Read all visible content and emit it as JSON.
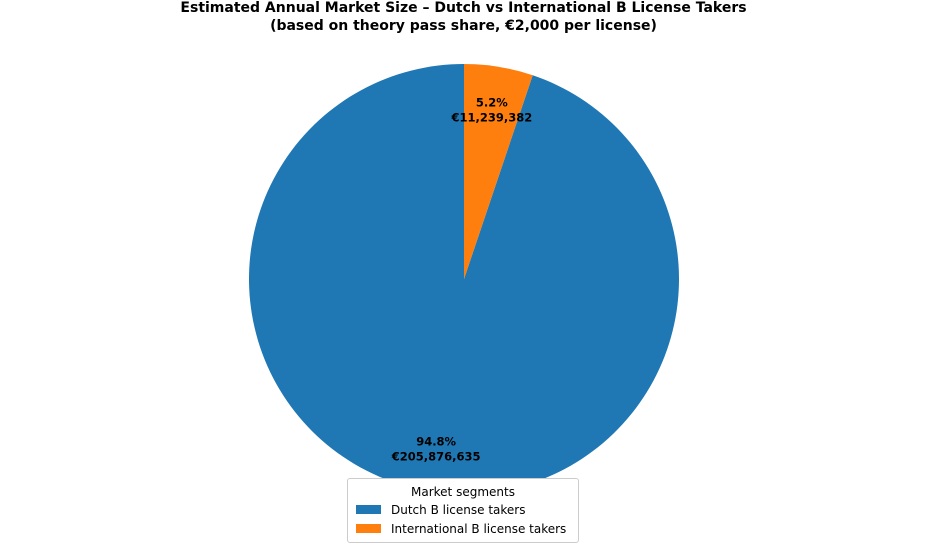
{
  "chart_data": {
    "type": "pie",
    "title": "Estimated Annual Market Size – Dutch vs International B License Takers",
    "subtitle": "(based on theory pass share, €2,000 per license)",
    "start_angle_deg": 90,
    "direction": "counterclockwise",
    "slices": [
      {
        "name": "Dutch B license takers",
        "value": 205876635,
        "percent_label": "94.8%",
        "value_label": "€205,876,635",
        "color": "#1f77b4"
      },
      {
        "name": "International B license takers",
        "value": 11239382,
        "percent_label": "5.2%",
        "value_label": "€11,239,382",
        "color": "#ff7f0e"
      }
    ],
    "legend": {
      "title": "Market segments",
      "placement": "bottom-center"
    }
  }
}
